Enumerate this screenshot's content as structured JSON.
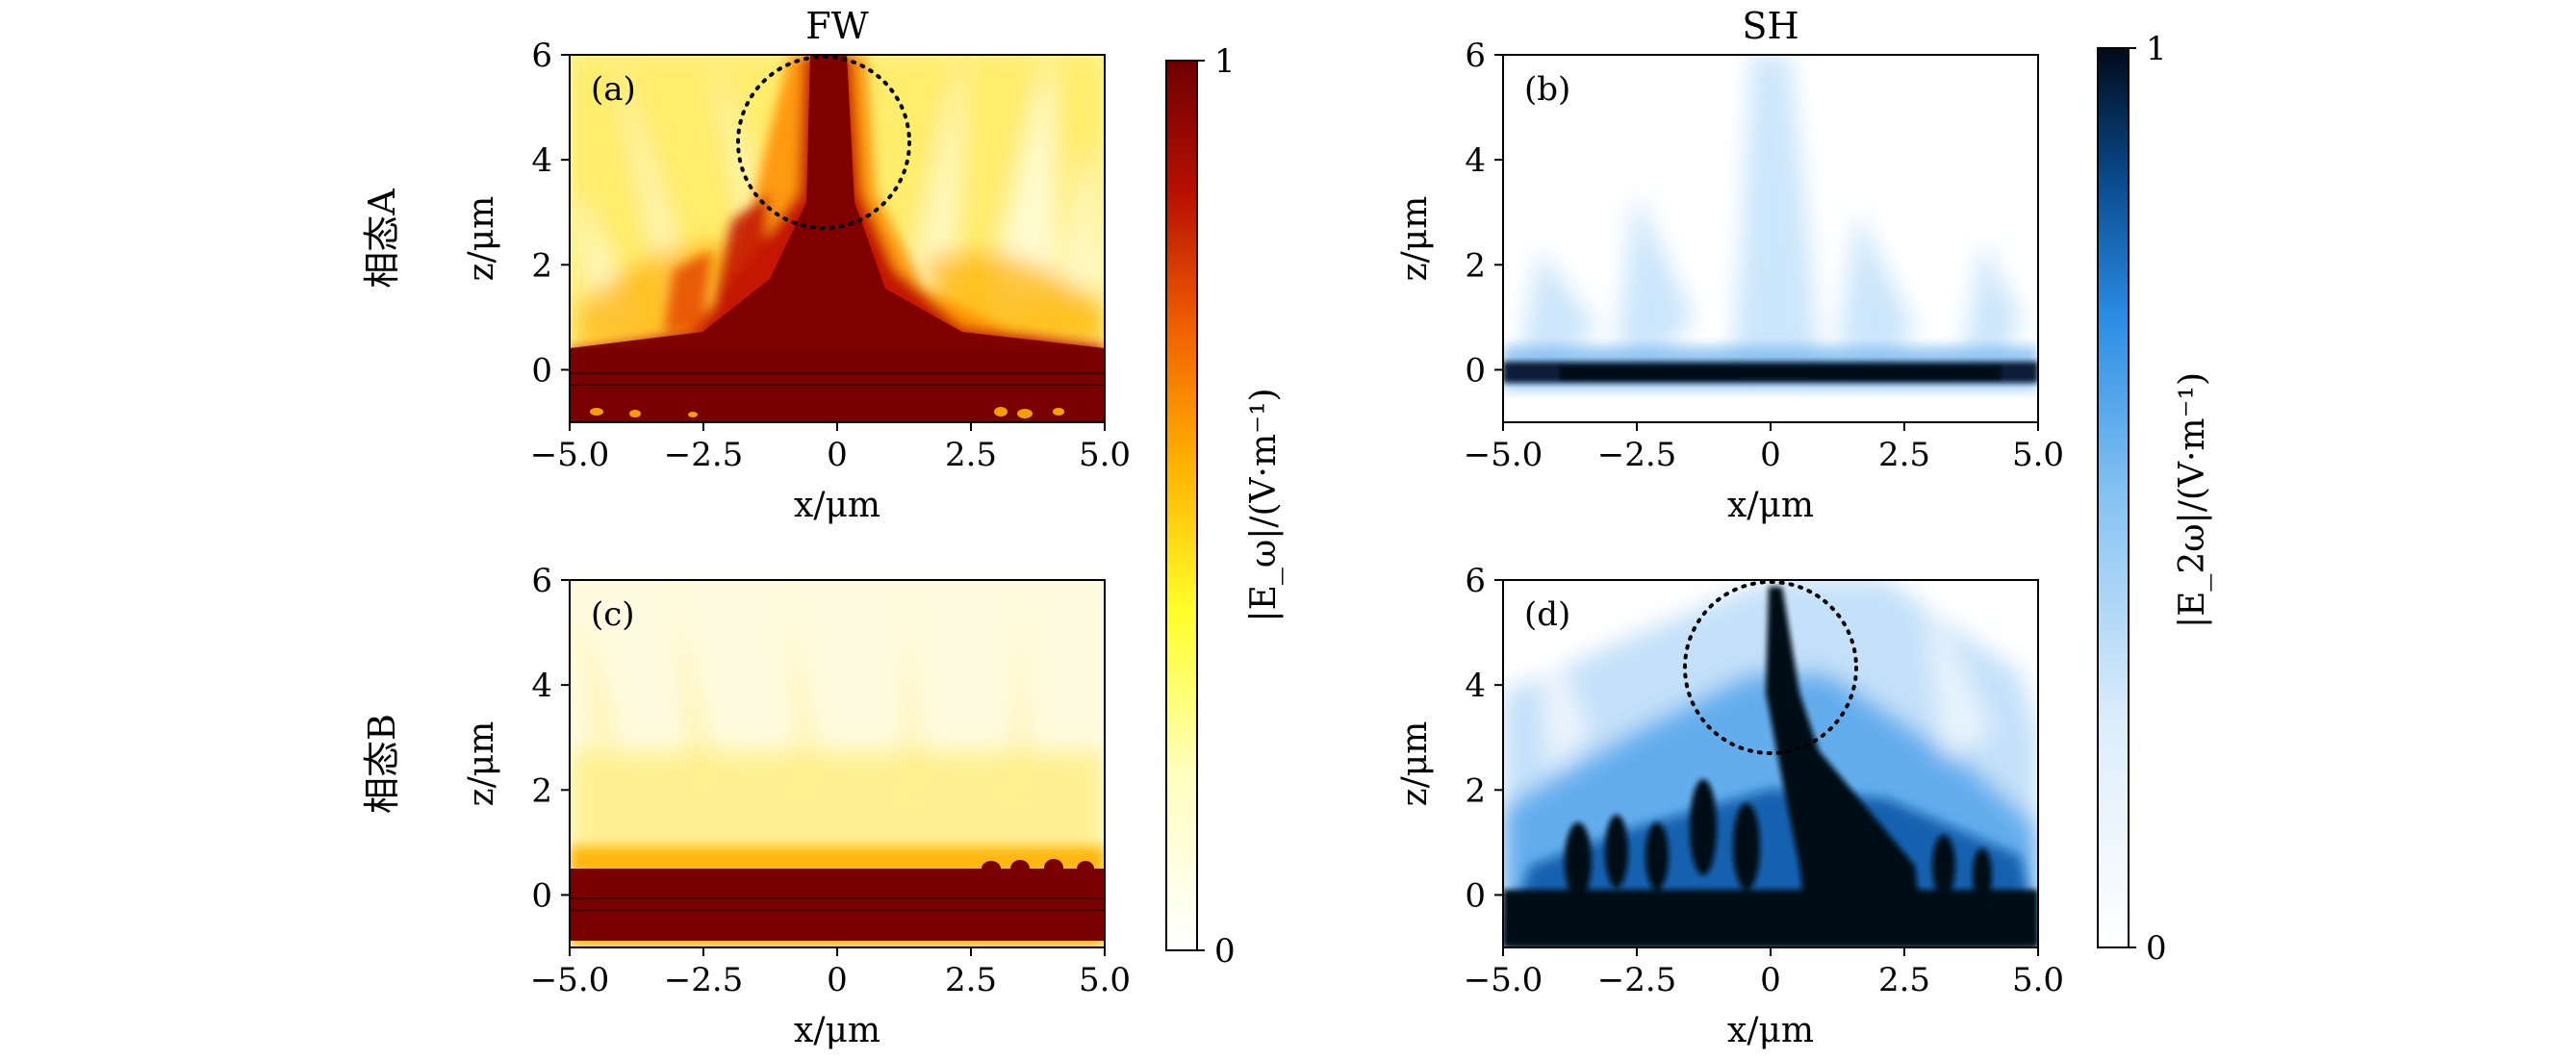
{
  "row_labels": [
    "相态A",
    "相态B"
  ],
  "chart_data": [
    {
      "type": "heatmap",
      "title": "FW",
      "panel_label": "(a)",
      "xlabel": "x/μm",
      "ylabel": "z/μm",
      "xlim": [
        -5,
        5
      ],
      "ylim": [
        -1,
        6
      ],
      "xticks": [
        "−5.0",
        "−2.5",
        "0",
        "2.5",
        "5.0"
      ],
      "yticks": [
        "0",
        "2",
        "4",
        "6"
      ],
      "colormap": "hot",
      "annotation": {
        "shape": "dotted-circle",
        "center": [
          -0.3,
          4.3
        ],
        "radius": 1.6
      }
    },
    {
      "type": "heatmap",
      "title": "SH",
      "panel_label": "(b)",
      "xlabel": "x/μm",
      "ylabel": "z/μm",
      "xlim": [
        -5,
        5
      ],
      "ylim": [
        -1,
        6
      ],
      "xticks": [
        "−5.0",
        "−2.5",
        "0",
        "2.5",
        "5.0"
      ],
      "yticks": [
        "0",
        "2",
        "4",
        "6"
      ],
      "colormap": "white-to-blue-to-black"
    },
    {
      "type": "heatmap",
      "panel_label": "(c)",
      "xlabel": "x/μm",
      "ylabel": "z/μm",
      "xlim": [
        -5,
        5
      ],
      "ylim": [
        -1,
        6
      ],
      "xticks": [
        "−5.0",
        "−2.5",
        "0",
        "2.5",
        "5.0"
      ],
      "yticks": [
        "0",
        "2",
        "4",
        "6"
      ],
      "colormap": "hot"
    },
    {
      "type": "heatmap",
      "panel_label": "(d)",
      "xlabel": "x/μm",
      "ylabel": "z/μm",
      "xlim": [
        -5,
        5
      ],
      "ylim": [
        -1,
        6
      ],
      "xticks": [
        "−5.0",
        "−2.5",
        "0",
        "2.5",
        "5.0"
      ],
      "yticks": [
        "0",
        "2",
        "4",
        "6"
      ],
      "colormap": "white-to-blue-to-black",
      "annotation": {
        "shape": "dotted-circle",
        "center": [
          0,
          4.3
        ],
        "radius": 1.6
      }
    }
  ],
  "colorbars": [
    {
      "label": "|E_ω|/(V·m⁻¹)",
      "min_label": "0",
      "max_label": "1",
      "colors": [
        "#ffffff",
        "#ffff9a",
        "#ffe600",
        "#ff9a00",
        "#e53000",
        "#a00000",
        "#6e0000"
      ]
    },
    {
      "label": "|E_2ω|/(V·m⁻¹)",
      "min_label": "0",
      "max_label": "1",
      "colors": [
        "#ffffff",
        "#d8ebfb",
        "#8cc6f4",
        "#2f92e6",
        "#0a5ba8",
        "#06224a",
        "#000814"
      ]
    }
  ]
}
